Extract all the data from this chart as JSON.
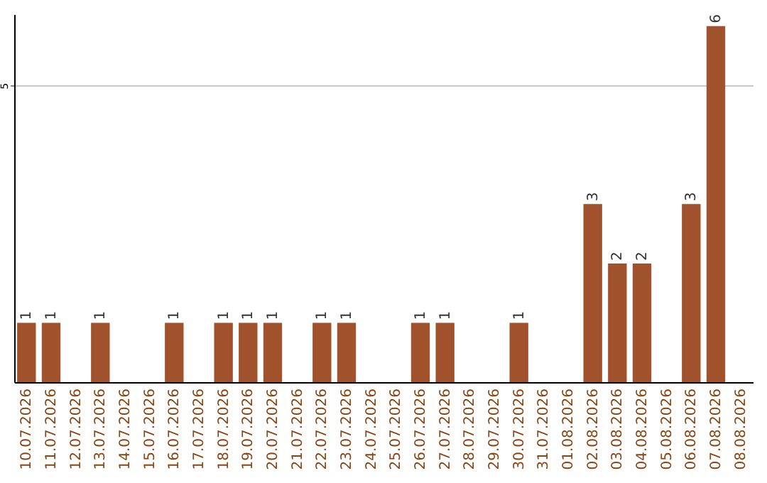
{
  "chart_data": {
    "type": "bar",
    "categories": [
      "10.07.2026",
      "11.07.2026",
      "12.07.2026",
      "13.07.2026",
      "14.07.2026",
      "15.07.2026",
      "16.07.2026",
      "17.07.2026",
      "18.07.2026",
      "19.07.2026",
      "20.07.2026",
      "21.07.2026",
      "22.07.2026",
      "23.07.2026",
      "24.07.2026",
      "25.07.2026",
      "26.07.2026",
      "27.07.2026",
      "28.07.2026",
      "29.07.2026",
      "30.07.2026",
      "31.07.2026",
      "01.08.2026",
      "02.08.2026",
      "03.08.2026",
      "04.08.2026",
      "05.08.2026",
      "06.08.2026",
      "07.08.2026",
      "08.08.2026"
    ],
    "values": [
      1,
      1,
      0,
      1,
      0,
      0,
      1,
      0,
      1,
      1,
      1,
      0,
      1,
      1,
      0,
      0,
      1,
      1,
      0,
      0,
      1,
      0,
      0,
      3,
      2,
      2,
      0,
      3,
      6,
      0
    ],
    "value_labels": [
      "1",
      "1",
      null,
      "1",
      null,
      null,
      "1",
      null,
      "1",
      "1",
      "1",
      null,
      "1",
      "1",
      null,
      null,
      "1",
      "1",
      null,
      null,
      "1",
      null,
      null,
      "3",
      "2",
      "2",
      null,
      "3",
      "6",
      null
    ],
    "color": "#a0522d",
    "ylim": [
      0,
      6.2
    ],
    "yticks": [
      5
    ],
    "grid": "y"
  }
}
